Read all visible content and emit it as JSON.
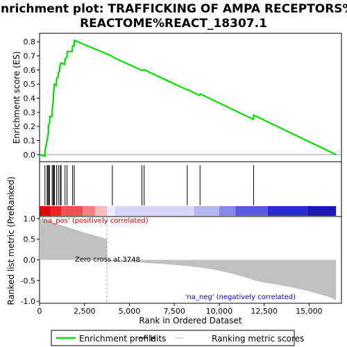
{
  "chart_data": {
    "type": "line",
    "title": "Enrichment plot: TRAFFICKING OF AMPA RECEPTORS%\nREACTOME%REACT_18307.1",
    "es_panel": {
      "ylabel": "Enrichment score (ES)",
      "ylim": [
        -0.05,
        0.86
      ],
      "yticks": [
        0.0,
        0.1,
        0.2,
        0.3,
        0.4,
        0.5,
        0.6,
        0.7,
        0.8
      ],
      "ytick_labels": [
        "0.0",
        "0.1",
        "0.2",
        "0.3",
        "0.4",
        "0.5",
        "0.6",
        "0.7",
        "0.8"
      ],
      "line_color": "#00dd00",
      "series": [
        {
          "name": "Enrichment profile",
          "x": [
            0,
            300,
            310,
            420,
            430,
            490,
            500,
            560,
            570,
            700,
            720,
            760,
            780,
            820,
            830,
            930,
            950,
            1030,
            1050,
            1110,
            1130,
            1170,
            1190,
            1400,
            1420,
            1520,
            1540,
            1820,
            1840,
            1920,
            1940,
            4000,
            4100,
            5650,
            5700,
            5800,
            5850,
            8200,
            8250,
            8900,
            8950,
            11900,
            11920,
            16500
          ],
          "y": [
            0.0,
            -0.01,
            0.03,
            0.1,
            0.11,
            0.15,
            0.21,
            0.22,
            0.27,
            0.27,
            0.33,
            0.38,
            0.44,
            0.48,
            0.5,
            0.49,
            0.54,
            0.55,
            0.58,
            0.59,
            0.63,
            0.64,
            0.65,
            0.64,
            0.68,
            0.69,
            0.73,
            0.73,
            0.77,
            0.77,
            0.81,
            0.7,
            0.69,
            0.6,
            0.6,
            0.6,
            0.6,
            0.46,
            0.46,
            0.42,
            0.43,
            0.25,
            0.28,
            0.0
          ]
        }
      ]
    },
    "hits": [
      300,
      420,
      470,
      500,
      560,
      700,
      760,
      800,
      830,
      950,
      1050,
      1150,
      1200,
      1420,
      1530,
      1840,
      1930,
      4050,
      5700,
      5820,
      8220,
      8930,
      11910
    ],
    "rank_panel": {
      "ylabel": "Ranked list metric (PreRanked)",
      "ylim": [
        -1.05,
        1.05
      ],
      "yticks": [
        1.0,
        0.5,
        0.0,
        -0.5,
        -1.0
      ],
      "ytick_labels": [
        "1.0",
        "0.5",
        "0.0",
        "-0.5",
        "-1.0"
      ],
      "xlabel": "Rank in Ordered Dataset",
      "xlim": [
        0,
        16800
      ],
      "xticks": [
        0,
        2500,
        5000,
        7500,
        10000,
        12500,
        15000
      ],
      "xtick_labels": [
        "0",
        "2,500",
        "5,000",
        "7,500",
        "10,000",
        "12,500",
        "15,000"
      ],
      "metric_x": [
        0,
        300,
        700,
        1000,
        1500,
        2000,
        2500,
        3000,
        3500,
        3748,
        3760,
        4500,
        5500,
        7000,
        8000,
        9000,
        9500,
        10000,
        10500,
        11000,
        11500,
        12000,
        12500,
        13000,
        13500,
        14000,
        14500,
        15000,
        15500,
        16000,
        16300,
        16500
      ],
      "metric_y": [
        1.0,
        0.96,
        0.92,
        0.87,
        0.8,
        0.73,
        0.66,
        0.6,
        0.54,
        0.5,
        -0.02,
        -0.05,
        -0.06,
        -0.1,
        -0.14,
        -0.19,
        -0.22,
        -0.26,
        -0.31,
        -0.37,
        -0.43,
        -0.5,
        -0.55,
        -0.58,
        -0.62,
        -0.66,
        -0.71,
        -0.76,
        -0.82,
        -0.88,
        -0.93,
        -0.98
      ],
      "zero_cross": 3748,
      "annotations": {
        "pos": "'na_pos' (positively correlated)",
        "neg": "'na_neg' (negatively correlated)",
        "zero": "Zero cross at 3748"
      }
    },
    "colorbar": [
      {
        "x0": 0,
        "x1": 600,
        "color": "#dd0000"
      },
      {
        "x0": 600,
        "x1": 1200,
        "color": "#ee2222"
      },
      {
        "x0": 1200,
        "x1": 2400,
        "color": "#f25050"
      },
      {
        "x0": 2400,
        "x1": 3100,
        "color": "#f78080"
      },
      {
        "x0": 3100,
        "x1": 3748,
        "color": "#fbbcbc"
      },
      {
        "x0": 3748,
        "x1": 4200,
        "color": "#ececfa"
      },
      {
        "x0": 4200,
        "x1": 8600,
        "color": "#d6d6f8"
      },
      {
        "x0": 8600,
        "x1": 10000,
        "color": "#b6b6f2"
      },
      {
        "x0": 10000,
        "x1": 10900,
        "color": "#8888ea"
      },
      {
        "x0": 10900,
        "x1": 12700,
        "color": "#5a5ae0"
      },
      {
        "x0": 12700,
        "x1": 14900,
        "color": "#2a2ad2"
      },
      {
        "x0": 14900,
        "x1": 16500,
        "color": "#1c18b8"
      }
    ],
    "legend": {
      "items": [
        {
          "label": "Enrichment profile",
          "color": "#00dd00"
        },
        {
          "label": "Hits",
          "color": "#000000"
        },
        {
          "label": "Ranking metric scores",
          "color": "#c0c0c0"
        }
      ]
    }
  }
}
